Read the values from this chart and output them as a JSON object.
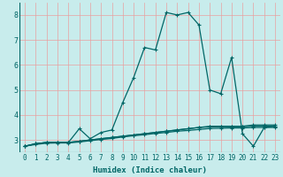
{
  "xlabel": "Humidex (Indice chaleur)",
  "ylabel": "",
  "bg_color": "#c8ecec",
  "grid_color": "#e8a0a0",
  "line_color": "#006666",
  "xlim": [
    -0.5,
    23.5
  ],
  "ylim": [
    2.5,
    8.5
  ],
  "xticks": [
    0,
    1,
    2,
    3,
    4,
    5,
    6,
    7,
    8,
    9,
    10,
    11,
    12,
    13,
    14,
    15,
    16,
    17,
    18,
    19,
    20,
    21,
    22,
    23
  ],
  "yticks": [
    3,
    4,
    5,
    6,
    7,
    8
  ],
  "series": [
    [
      2.75,
      2.85,
      2.9,
      2.9,
      2.9,
      3.45,
      3.05,
      3.3,
      3.4,
      4.5,
      5.5,
      6.7,
      6.6,
      8.1,
      8.0,
      8.1,
      7.6,
      5.0,
      4.85,
      6.3,
      3.25,
      2.75,
      3.5,
      3.55
    ],
    [
      2.75,
      2.85,
      2.9,
      2.9,
      2.9,
      2.95,
      3.0,
      3.05,
      3.1,
      3.15,
      3.2,
      3.25,
      3.3,
      3.35,
      3.4,
      3.45,
      3.5,
      3.55,
      3.55,
      3.55,
      3.55,
      3.6,
      3.6,
      3.6
    ],
    [
      2.75,
      2.85,
      2.9,
      2.9,
      2.9,
      2.95,
      3.0,
      3.05,
      3.1,
      3.15,
      3.2,
      3.25,
      3.3,
      3.35,
      3.4,
      3.45,
      3.5,
      3.52,
      3.53,
      3.53,
      3.53,
      3.55,
      3.55,
      3.55
    ],
    [
      2.75,
      2.82,
      2.87,
      2.88,
      2.88,
      2.92,
      2.97,
      3.02,
      3.06,
      3.12,
      3.17,
      3.21,
      3.26,
      3.3,
      3.35,
      3.38,
      3.42,
      3.46,
      3.47,
      3.48,
      3.48,
      3.5,
      3.5,
      3.5
    ]
  ],
  "marker": "+",
  "markersize": 3.5,
  "linewidth": 0.9,
  "tick_fontsize": 5.5,
  "xlabel_fontsize": 6.5
}
